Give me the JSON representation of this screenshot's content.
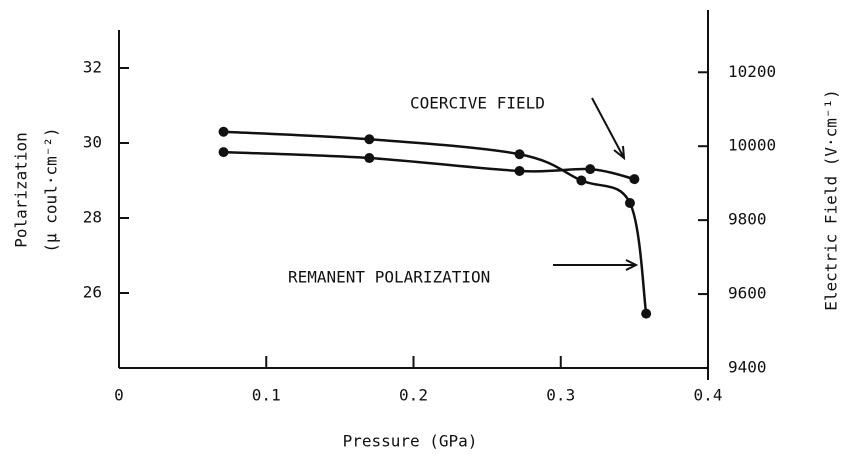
{
  "chart_data": {
    "type": "line",
    "xlabel": "Pressure (GPa)",
    "ylabel": [
      "Polarization",
      "(μ coul·cm⁻²)"
    ],
    "y2label": "Electric Field (V·cm⁻¹)",
    "xlim": [
      0,
      0.4
    ],
    "xticks": [
      0,
      0.1,
      0.2,
      0.3,
      0.4
    ],
    "ylim": [
      24,
      33
    ],
    "yticks": [
      26,
      28,
      30,
      32
    ],
    "y2lim": [
      9400,
      10313
    ],
    "y2ticks": [
      9400,
      9600,
      9800,
      10000,
      10200
    ],
    "series": [
      {
        "name": "REMANENT POLARIZATION",
        "color": "#111111",
        "x": [
          0.071,
          0.17,
          0.272,
          0.314,
          0.347,
          0.358
        ],
        "values": [
          30.3,
          30.1,
          29.7,
          29.0,
          28.4,
          25.45
        ]
      },
      {
        "name": "COERCIVE FIELD",
        "color": "#111111",
        "axis": "y2",
        "x": [
          0.071,
          0.17,
          0.272,
          0.32,
          0.35
        ],
        "values": [
          9984,
          9968,
          9933,
          9938,
          9911
        ]
      }
    ]
  }
}
